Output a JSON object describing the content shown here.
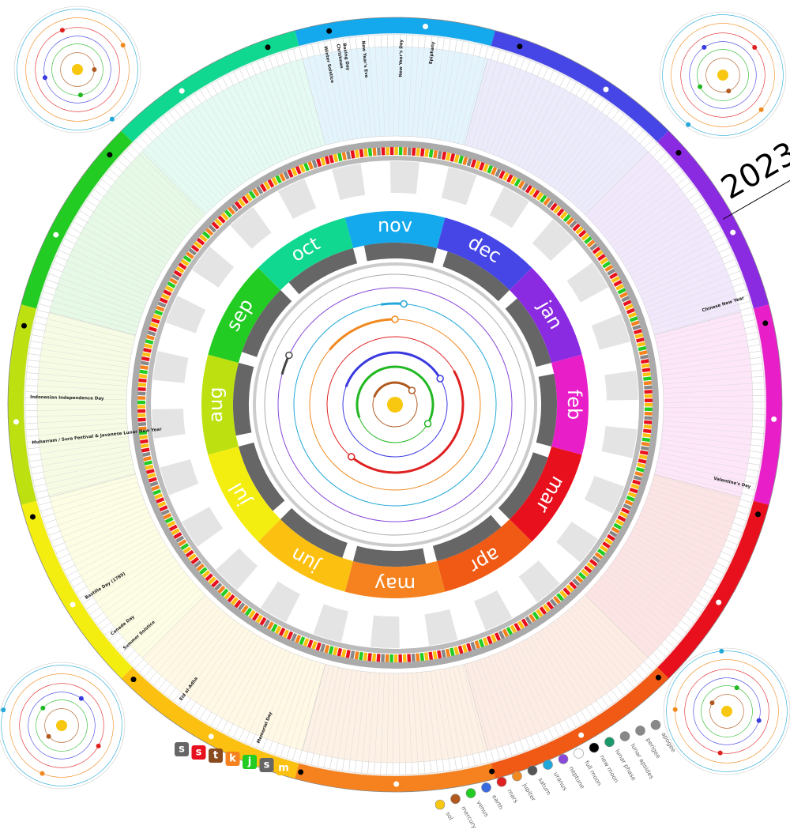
{
  "title": "2023",
  "months": [
    "nov",
    "dec",
    "jan",
    "feb",
    "mar",
    "apr",
    "may",
    "jun",
    "jul",
    "aug",
    "sep",
    "oct"
  ],
  "holidays": [
    "Indonesian Independence Day",
    "Muharram / Sura Festival & Javanese Lunar New Year",
    "Bastille Day (1789)",
    "Eid al-Adha",
    "Canada Day",
    "Valentine's Day",
    "Chinese New Year",
    "Christmas",
    "Boxing Day",
    "New Year's Eve",
    "New Year's Day",
    "Epiphany",
    "Winter Solstice",
    "Summer Solstice",
    "Memorial Day"
  ],
  "weekday_legend": [
    "s",
    "s",
    "t",
    "k",
    "j",
    "s",
    "m"
  ],
  "body_legend": [
    "sol",
    "mercury",
    "venus",
    "earth",
    "mars",
    "jupiter",
    "saturn",
    "uranus",
    "neptune",
    "full moon",
    "new moon",
    "lunar phase",
    "lunar apsides",
    "perigee",
    "apogee"
  ]
}
